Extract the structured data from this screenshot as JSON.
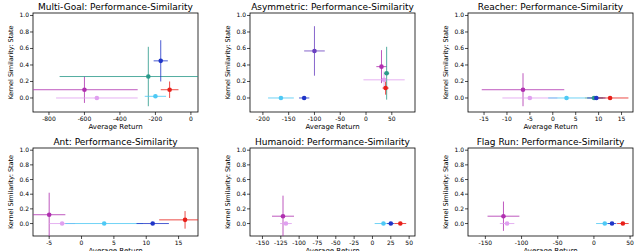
{
  "chart_data": [
    {
      "type": "scatter",
      "title": "Multi-Goal: Performance-Similarity",
      "x_label": "Average Return",
      "y_label": "Kernel Similarity: State",
      "xlim": [
        -890,
        40
      ],
      "xticks": [
        -800,
        -600,
        -400,
        -200,
        0
      ],
      "ylim": [
        -0.17,
        1.03
      ],
      "yticks": [
        {
          "value": 0,
          "label": "0.0"
        },
        0.2,
        0.4,
        0.6,
        0.8,
        {
          "value": 1,
          "label": "1.0"
        }
      ],
      "x": [
        -600,
        -530,
        -240,
        -170,
        -200,
        -120
      ],
      "values": [
        0.1,
        0.0,
        0.26,
        0.45,
        0.02,
        0.1
      ],
      "x_errors": [
        300,
        230,
        500,
        40,
        60,
        50
      ],
      "y_errors": [
        0.16,
        0.02,
        0.36,
        0.25,
        0.02,
        0.1
      ],
      "colors": [
        "#b030b0",
        "#e0a0f0",
        "#2a9a8a",
        "#1f35c8",
        "#4ec9f5",
        "#e8201a"
      ]
    },
    {
      "type": "scatter",
      "title": "Asymmetric: Performance-Similarity",
      "x_label": "Average Return",
      "y_label": "Kernel Similarity: State",
      "xlim": [
        -225,
        95
      ],
      "xticks": [
        -200,
        -150,
        -100,
        -50,
        0,
        50
      ],
      "ylim": [
        -0.17,
        1.03
      ],
      "yticks": [
        {
          "value": 0,
          "label": "0.0"
        },
        0.2,
        0.4,
        0.6,
        0.8,
        {
          "value": 1,
          "label": "1.0"
        }
      ],
      "x": [
        -165,
        -120,
        -100,
        30,
        35,
        40,
        38
      ],
      "values": [
        0.0,
        0.0,
        0.57,
        0.38,
        0.22,
        0.3,
        0.12
      ],
      "x_errors": [
        25,
        10,
        20,
        10,
        40,
        5,
        6
      ],
      "y_errors": [
        0.01,
        0.01,
        0.3,
        0.2,
        0.1,
        0.32,
        0.08
      ],
      "colors": [
        "#4ec9f5",
        "#1f35c8",
        "#6a40c0",
        "#b030b0",
        "#e0a0f0",
        "#2a9a8a",
        "#e8201a"
      ]
    },
    {
      "type": "scatter",
      "title": "Reacher: Performance-Similarity",
      "x_label": "Average Return",
      "y_label": "Kernel Similarity: State",
      "xlim": [
        -18.5,
        17.5
      ],
      "xticks": [
        -15,
        -10,
        -5,
        0,
        5,
        10,
        15
      ],
      "ylim": [
        -0.17,
        1.03
      ],
      "yticks": [
        {
          "value": 0,
          "label": "0.0"
        },
        0.2,
        0.4,
        0.6,
        0.8,
        {
          "value": 1,
          "label": "1.0"
        }
      ],
      "x": [
        -6.5,
        -5,
        3,
        9,
        9.5,
        12.5
      ],
      "values": [
        0.1,
        0.0,
        0.0,
        0.0,
        0.0,
        0.0
      ],
      "x_errors": [
        9,
        6,
        4,
        2,
        2,
        4
      ],
      "y_errors": [
        0.2,
        0.01,
        0.01,
        0.01,
        0.01,
        0.01
      ],
      "colors": [
        "#b030b0",
        "#e0a0f0",
        "#4ec9f5",
        "#2a9a8a",
        "#1f35c8",
        "#e8201a"
      ]
    },
    {
      "type": "scatter",
      "title": "Ant: Performance-Similarity",
      "x_label": "Average Return",
      "y_label": "Kernel Similarity: State",
      "xlim": [
        -7.5,
        18
      ],
      "xticks": [
        -5,
        0,
        5,
        10,
        15
      ],
      "ylim": [
        -0.17,
        1.03
      ],
      "yticks": [
        {
          "value": 0,
          "label": "0.0"
        },
        0.2,
        0.4,
        0.6,
        0.8,
        {
          "value": 1,
          "label": "1.0"
        }
      ],
      "x": [
        -5,
        -3,
        3.5,
        11,
        16
      ],
      "values": [
        0.12,
        0.0,
        0.0,
        0.0,
        0.05
      ],
      "x_errors": [
        2.5,
        2,
        6,
        2.5,
        4
      ],
      "y_errors": [
        0.3,
        0.01,
        0.01,
        0.01,
        0.12
      ],
      "colors": [
        "#b030b0",
        "#e0a0f0",
        "#4ec9f5",
        "#1f35c8",
        "#e8201a"
      ]
    },
    {
      "type": "scatter",
      "title": "Humanoid: Performance-Similarity",
      "x_label": "Average Return",
      "y_label": "Kernel Similarity: State",
      "xlim": [
        -167,
        58
      ],
      "xticks": [
        -150,
        -125,
        -100,
        -75,
        -50,
        -25,
        0,
        25,
        50
      ],
      "ylim": [
        -0.17,
        1.03
      ],
      "yticks": [
        {
          "value": 0,
          "label": "0.0"
        },
        0.2,
        0.4,
        0.6,
        0.8,
        {
          "value": 1,
          "label": "1.0"
        }
      ],
      "x": [
        -122,
        -118,
        15,
        25,
        38
      ],
      "values": [
        0.1,
        0.0,
        0.0,
        0.0,
        0.0
      ],
      "x_errors": [
        15,
        8,
        12,
        5,
        8
      ],
      "y_errors": [
        0.28,
        0.01,
        0.01,
        0.01,
        0.01
      ],
      "colors": [
        "#b030b0",
        "#e0a0f0",
        "#4ec9f5",
        "#1f35c8",
        "#e8201a"
      ]
    },
    {
      "type": "scatter",
      "title": "Flag Run: Performance-Similarity",
      "x_label": "Average Return",
      "y_label": "Kernel Similarity: State",
      "xlim": [
        -174,
        54
      ],
      "xticks": [
        -150,
        -100,
        -50,
        0,
        50
      ],
      "ylim": [
        -0.17,
        1.03
      ],
      "yticks": [
        {
          "value": 0,
          "label": "0.0"
        },
        0.2,
        0.4,
        0.6,
        0.8,
        {
          "value": 1,
          "label": "1.0"
        }
      ],
      "x": [
        -125,
        -120,
        15,
        25,
        40
      ],
      "values": [
        0.1,
        0.0,
        0.0,
        0.0,
        0.0
      ],
      "x_errors": [
        22,
        10,
        12,
        6,
        8
      ],
      "y_errors": [
        0.2,
        0.01,
        0.01,
        0.01,
        0.01
      ],
      "colors": [
        "#b030b0",
        "#e0a0f0",
        "#4ec9f5",
        "#1f35c8",
        "#e8201a"
      ]
    }
  ]
}
